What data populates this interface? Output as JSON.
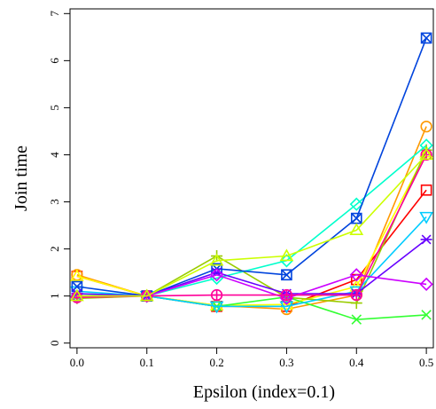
{
  "chart_data": {
    "type": "line",
    "xlabel": "Epsilon (index=0.1)",
    "ylabel": "Join time",
    "x": [
      0.0,
      0.1,
      0.2,
      0.3,
      0.4,
      0.5
    ],
    "x_tick_labels": [
      "0.0",
      "0.1",
      "0.2",
      "0.3",
      "0.4",
      "0.5"
    ],
    "y_ticks": [
      0,
      1,
      2,
      3,
      4,
      5,
      6,
      7
    ],
    "y_tick_labels": [
      "0",
      "1",
      "2",
      "3",
      "4",
      "5",
      "6",
      "7"
    ],
    "xlim": [
      -0.01,
      0.51
    ],
    "ylim": [
      -0.1,
      7.1
    ],
    "grid": false,
    "legend": "none",
    "series": [
      {
        "marker": "square",
        "color": "#ff0000",
        "values": [
          1.42,
          1.0,
          0.78,
          0.78,
          1.35,
          3.25
        ]
      },
      {
        "marker": "circle",
        "color": "#ff9900",
        "values": [
          1.45,
          1.0,
          0.8,
          0.72,
          1.02,
          4.6
        ]
      },
      {
        "marker": "triangle-up",
        "color": "#ffff00",
        "values": [
          1.42,
          1.0,
          0.8,
          0.82,
          1.2,
          4.05
        ]
      },
      {
        "marker": "plus",
        "color": "#99cc00",
        "values": [
          0.95,
          1.0,
          1.85,
          0.97,
          0.85,
          4.1
        ]
      },
      {
        "marker": "cross",
        "color": "#33ff33",
        "values": [
          1.05,
          1.0,
          0.78,
          0.98,
          0.5,
          0.6
        ]
      },
      {
        "marker": "diamond",
        "color": "#00ffcc",
        "values": [
          1.0,
          1.0,
          1.38,
          1.75,
          2.95,
          4.2
        ]
      },
      {
        "marker": "triangle-down",
        "color": "#00ccff",
        "values": [
          1.1,
          1.0,
          0.78,
          0.78,
          1.1,
          2.68
        ]
      },
      {
        "marker": "square-x",
        "color": "#0044dd",
        "values": [
          1.2,
          1.0,
          1.58,
          1.45,
          2.65,
          6.48
        ]
      },
      {
        "marker": "asterisk",
        "color": "#6600ff",
        "values": [
          1.05,
          1.0,
          1.5,
          1.05,
          1.05,
          2.2
        ]
      },
      {
        "marker": "diamond",
        "color": "#cc00ff",
        "values": [
          0.98,
          1.0,
          1.45,
          0.95,
          1.45,
          1.25
        ]
      },
      {
        "marker": "circle-plus",
        "color": "#ff0099",
        "values": [
          0.97,
          1.0,
          1.02,
          1.02,
          1.02,
          4.0
        ]
      },
      {
        "marker": "triangle-up",
        "color": "#ccff00",
        "values": [
          1.0,
          1.0,
          1.75,
          1.85,
          2.4,
          4.0
        ]
      }
    ]
  }
}
